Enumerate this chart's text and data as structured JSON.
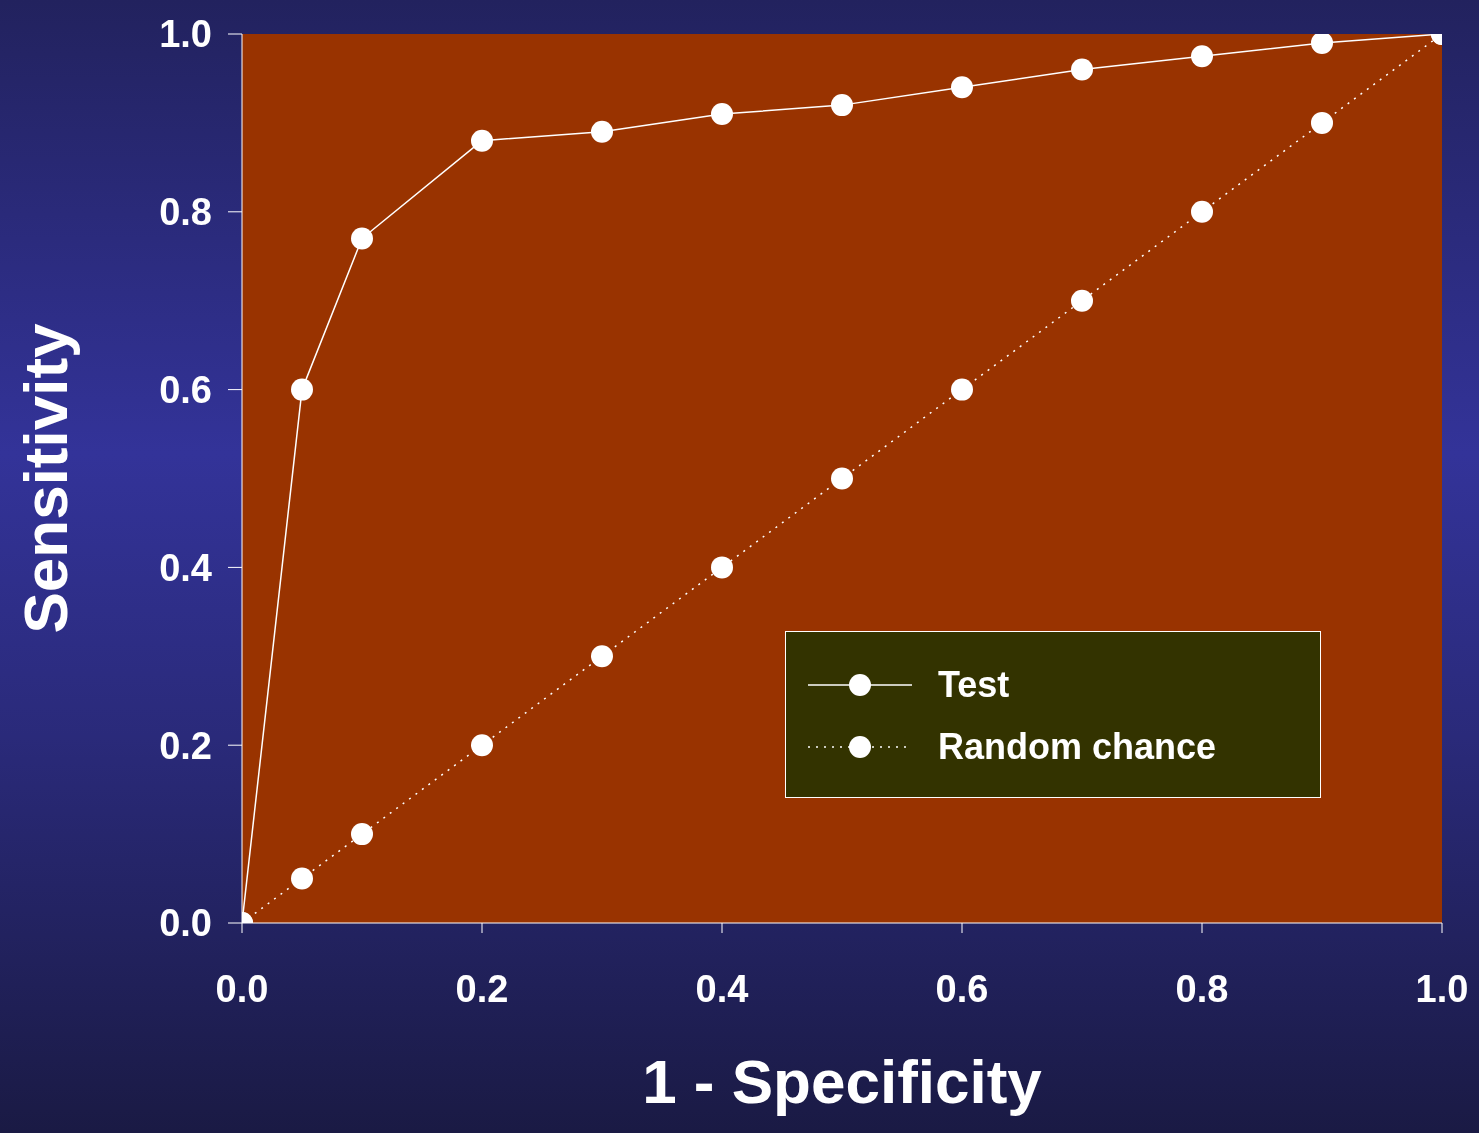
{
  "chart_data": {
    "type": "line",
    "xlabel": "1 - Specificity",
    "ylabel": "Sensitivity",
    "x": [
      0,
      0.05,
      0.1,
      0.2,
      0.3,
      0.4,
      0.5,
      0.6,
      0.7,
      0.8,
      0.9,
      1
    ],
    "series": [
      {
        "name": "Test",
        "color": "#ffffff",
        "line_style": "solid",
        "values": [
          0,
          0.6,
          0.77,
          0.88,
          0.89,
          0.91,
          0.92,
          0.94,
          0.96,
          0.975,
          0.99,
          1
        ]
      },
      {
        "name": "Random chance",
        "color": "#ffffff",
        "line_style": "dotted",
        "values": [
          0,
          0.05,
          0.1,
          0.2,
          0.3,
          0.4,
          0.5,
          0.6,
          0.7,
          0.8,
          0.9,
          1
        ]
      }
    ],
    "xlim": [
      0,
      1
    ],
    "ylim": [
      0,
      1
    ],
    "xticks": [
      {
        "value": 0,
        "label": "0.0"
      },
      0.2,
      0.4,
      0.6,
      0.8,
      {
        "value": 1,
        "label": "1.0"
      }
    ],
    "yticks": [
      {
        "value": 0,
        "label": "0.0"
      },
      0.2,
      0.4,
      0.6,
      0.8,
      {
        "value": 1,
        "label": "1.0"
      }
    ],
    "grid": false,
    "legend": "bottom right",
    "marker": "circle"
  }
}
